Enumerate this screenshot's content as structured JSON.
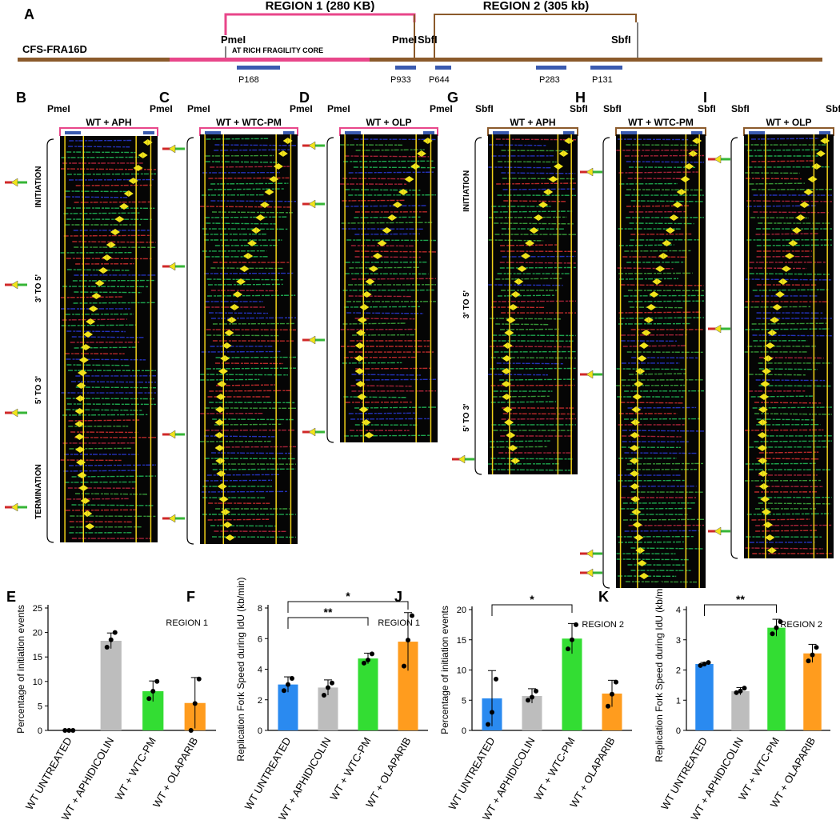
{
  "panel_letters": {
    "A": "A",
    "B": "B",
    "C": "C",
    "D": "D",
    "G": "G",
    "H": "H",
    "I": "I",
    "E": "E",
    "F": "F",
    "J": "J",
    "K": "K"
  },
  "map": {
    "locus": "CFS-FRA16D",
    "region1": "REGION 1 (280 KB)",
    "region2": "REGION 2 (305 kb)",
    "core": "AT RICH FRAGILITY CORE",
    "site_pmei": "PmeI",
    "site_sbfi": "SbfI",
    "probes": [
      "P168",
      "P933",
      "P644",
      "P283",
      "P131"
    ],
    "colors": {
      "chromosome": "#8b5a2b",
      "core": "#e8468a",
      "probe": "#3b5bb0"
    }
  },
  "panels": [
    {
      "letter": "B",
      "title": "WT + APH",
      "left_site": "PmeI",
      "right_site": "PmeI",
      "header_color": "#e8468a",
      "phases": [
        "INITIATION",
        "3' TO 5'",
        "5' TO 3'",
        "TERMINATION"
      ]
    },
    {
      "letter": "C",
      "title": "WT + WTC-PM",
      "left_site": "PmeI",
      "right_site": "PmeI",
      "header_color": "#e8468a",
      "phases": []
    },
    {
      "letter": "D",
      "title": "WT + OLP",
      "left_site": "PmeI",
      "right_site": "PmeI",
      "header_color": "#e8468a",
      "phases": []
    },
    {
      "letter": "G",
      "title": "WT + APH",
      "left_site": "SbfI",
      "right_site": "SbfI",
      "header_color": "#8b5a2b",
      "phases": [
        "INITIATION",
        "3' TO 5'",
        "5' TO 3'"
      ]
    },
    {
      "letter": "H",
      "title": "WT + WTC-PM",
      "left_site": "SbfI",
      "right_site": "SbfI",
      "header_color": "#8b5a2b",
      "phases": []
    },
    {
      "letter": "I",
      "title": "WT + OLP",
      "left_site": "SbfI",
      "right_site": "SbfI",
      "header_color": "#8b5a2b",
      "phases": []
    }
  ],
  "chart_data": [
    {
      "panel": "E",
      "type": "bar",
      "title": "",
      "region_label": "REGION 1",
      "ylabel": "Percentage of initiation events",
      "ylim": [
        0,
        25
      ],
      "yticks": [
        0,
        5,
        10,
        15,
        20,
        25
      ],
      "categories": [
        "WT UNTREATED",
        "WT + APHIDICOLIN",
        "WT + WTC-PM",
        "WT + OLAPARIB"
      ],
      "values": [
        0,
        18.3,
        8.0,
        5.6
      ],
      "errors": [
        0,
        1.6,
        2.1,
        5.2
      ],
      "points": [
        [
          0,
          0,
          0
        ],
        [
          17,
          18.5,
          20
        ],
        [
          6.5,
          8,
          10
        ],
        [
          0,
          5.5,
          10.5
        ]
      ],
      "colors": [
        "#2a8af0",
        "#bdbdbd",
        "#33dd33",
        "#ff9c1e"
      ],
      "sig": []
    },
    {
      "panel": "F",
      "type": "bar",
      "title": "",
      "region_label": "REGION 1",
      "ylabel": "Replication Fork Speed during IdU (kb/min)",
      "ylim": [
        0,
        8
      ],
      "yticks": [
        0,
        2,
        4,
        6,
        8
      ],
      "categories": [
        "WT UNTREATED",
        "WT + APHIDICOLIN",
        "WT + WTC-PM",
        "WT + OLAPARIB"
      ],
      "values": [
        3.0,
        2.8,
        4.7,
        5.8
      ],
      "errors": [
        0.5,
        0.5,
        0.35,
        1.9
      ],
      "points": [
        [
          2.6,
          3.0,
          3.4
        ],
        [
          2.3,
          2.8,
          3.1
        ],
        [
          4.4,
          4.6,
          5.0
        ],
        [
          4.2,
          5.9,
          7.5
        ]
      ],
      "colors": [
        "#2a8af0",
        "#bdbdbd",
        "#33dd33",
        "#ff9c1e"
      ],
      "sig": [
        {
          "from": 0,
          "to": 2,
          "label": "**"
        },
        {
          "from": 0,
          "to": 3,
          "label": "*"
        }
      ]
    },
    {
      "panel": "J",
      "type": "bar",
      "title": "",
      "region_label": "REGION 2",
      "ylabel": "Percentage of initiation events",
      "ylim": [
        0,
        20
      ],
      "yticks": [
        0,
        5,
        10,
        15,
        20
      ],
      "categories": [
        "WT UNTREATED",
        "WT + APHIDICOLIN",
        "WT + WTC-PM",
        "WT + OLAPARIB"
      ],
      "values": [
        5.3,
        5.7,
        15.2,
        6.1
      ],
      "errors": [
        4.6,
        1.2,
        2.5,
        2.2
      ],
      "points": [
        [
          1.0,
          3.0,
          8.5
        ],
        [
          5.0,
          5.5,
          6.5
        ],
        [
          13.5,
          15.0,
          17.5
        ],
        [
          4.0,
          6.0,
          8.0
        ]
      ],
      "colors": [
        "#2a8af0",
        "#bdbdbd",
        "#33dd33",
        "#ff9c1e"
      ],
      "sig": [
        {
          "from": 0,
          "to": 2,
          "label": "*"
        }
      ]
    },
    {
      "panel": "K",
      "type": "bar",
      "title": "",
      "region_label": "REGION 2",
      "ylabel": "Replication Fork Speed during IdU (kb/min)",
      "ylim": [
        0,
        4
      ],
      "yticks": [
        0,
        1,
        2,
        3,
        4
      ],
      "categories": [
        "WT UNTREATED",
        "WT + APHIDICOLIN",
        "WT + WTC-PM",
        "WT + OLAPARIB"
      ],
      "values": [
        2.2,
        1.3,
        3.4,
        2.55
      ],
      "errors": [
        0.05,
        0.12,
        0.28,
        0.3
      ],
      "points": [
        [
          2.15,
          2.2,
          2.25
        ],
        [
          1.25,
          1.3,
          1.4
        ],
        [
          3.2,
          3.4,
          3.6
        ],
        [
          2.3,
          2.5,
          2.75
        ]
      ],
      "colors": [
        "#2a8af0",
        "#bdbdbd",
        "#33dd33",
        "#ff9c1e"
      ],
      "sig": [
        {
          "from": 0,
          "to": 2,
          "label": "**"
        }
      ]
    }
  ]
}
